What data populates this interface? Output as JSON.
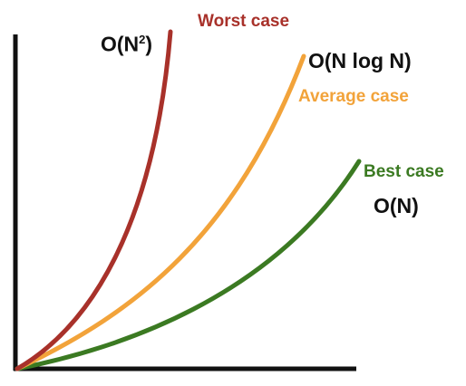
{
  "colors": {
    "axis": "#111111",
    "worst": "#a8312a",
    "average": "#f2a33a",
    "best": "#3b7a22",
    "text": "#111111"
  },
  "curves": {
    "worst": {
      "case_label": "Worst case",
      "complexity_base": "O(N",
      "complexity_sup": "2",
      "complexity_close": ")"
    },
    "average": {
      "case_label": "Average case",
      "complexity": "O(N log N)"
    },
    "best": {
      "case_label": "Best case",
      "complexity": "O(N)"
    }
  }
}
